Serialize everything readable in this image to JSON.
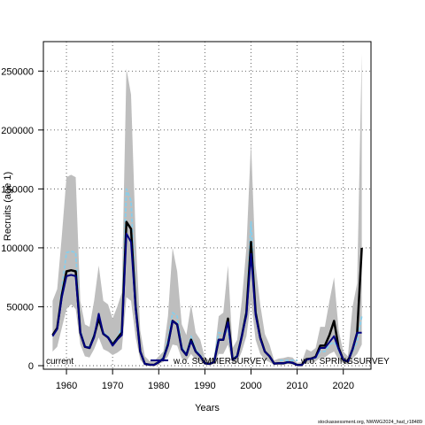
{
  "footer": {
    "source": "stockassessment.org, NWWG2024_had_r18489"
  },
  "chart_data": {
    "type": "line",
    "xlabel": "Years",
    "ylabel": "Recruits (age 1)",
    "xlim": [
      1955,
      2026
    ],
    "ylim": [
      -3000,
      275000
    ],
    "xticks": [
      1960,
      1970,
      1980,
      1990,
      2000,
      2010,
      2020
    ],
    "yticks": [
      0,
      50000,
      100000,
      150000,
      200000,
      250000
    ],
    "grid": true,
    "legend_position": "bottom",
    "band_color": "#bebebe",
    "x": [
      1957,
      1958,
      1959,
      1960,
      1961,
      1962,
      1963,
      1964,
      1965,
      1966,
      1967,
      1968,
      1969,
      1970,
      1971,
      1972,
      1973,
      1974,
      1975,
      1976,
      1977,
      1978,
      1979,
      1980,
      1981,
      1982,
      1983,
      1984,
      1985,
      1986,
      1987,
      1988,
      1989,
      1990,
      1991,
      1992,
      1993,
      1994,
      1995,
      1996,
      1997,
      1998,
      1999,
      2000,
      2001,
      2002,
      2003,
      2004,
      2005,
      2006,
      2007,
      2008,
      2009,
      2010,
      2011,
      2012,
      2013,
      2014,
      2015,
      2016,
      2017,
      2018,
      2019,
      2020,
      2021,
      2022,
      2023,
      2024
    ],
    "band": {
      "lower": [
        12000,
        16000,
        32000,
        48000,
        52000,
        48000,
        18000,
        8000,
        7000,
        14000,
        24000,
        14000,
        12000,
        9000,
        11000,
        14000,
        58000,
        55000,
        24000,
        5000,
        500,
        300,
        300,
        1500,
        3000,
        8000,
        18000,
        17000,
        6000,
        4000,
        10000,
        5000,
        3500,
        800,
        600,
        1500,
        10000,
        10000,
        18000,
        1500,
        3000,
        12000,
        25000,
        55000,
        22000,
        10000,
        5000,
        3000,
        700,
        700,
        700,
        1500,
        1000,
        200,
        200,
        2500,
        2500,
        3500,
        7000,
        7000,
        10000,
        12000,
        5000,
        2000,
        1000,
        6000,
        10000,
        18000
      ],
      "upper": [
        55000,
        65000,
        110000,
        160000,
        162000,
        160000,
        55000,
        35000,
        33000,
        55000,
        85000,
        55000,
        52000,
        40000,
        50000,
        62000,
        252000,
        230000,
        110000,
        30000,
        8000,
        4000,
        4000,
        8000,
        12000,
        42000,
        100000,
        80000,
        35000,
        26000,
        52000,
        28000,
        22000,
        6500,
        5000,
        7000,
        42000,
        45000,
        85000,
        15000,
        22000,
        55000,
        100000,
        190000,
        85000,
        52000,
        27000,
        18000,
        4500,
        6000,
        6500,
        7500,
        7000,
        2500,
        3000,
        14000,
        12000,
        15000,
        33000,
        33000,
        55000,
        75000,
        30000,
        12000,
        8000,
        50000,
        70000,
        265000
      ]
    },
    "series": [
      {
        "name": "current",
        "color": "#000000",
        "style": "solid",
        "width": 2.5,
        "values": [
          26000,
          32000,
          60000,
          80000,
          81000,
          80000,
          28000,
          16000,
          15000,
          25000,
          40000,
          27000,
          24000,
          18000,
          23000,
          28000,
          122000,
          116000,
          50000,
          12000,
          1500,
          800,
          700,
          3000,
          6000,
          18000,
          38000,
          35000,
          14000,
          9000,
          22000,
          12000,
          8000,
          2000,
          1500,
          3000,
          22000,
          22000,
          40000,
          5000,
          8000,
          25000,
          45000,
          105000,
          45000,
          24000,
          12000,
          8000,
          1800,
          2000,
          2000,
          3000,
          2500,
          500,
          600,
          5500,
          6000,
          7500,
          17000,
          17000,
          26000,
          38000,
          15000,
          5000,
          3500,
          14000,
          28000,
          100000
        ]
      },
      {
        "name": "w.o. SUMMERSURVEY",
        "color": "#000080",
        "style": "solid",
        "width": 2.0,
        "values": [
          25000,
          31000,
          58000,
          76000,
          77000,
          76000,
          28000,
          16000,
          15000,
          24000,
          44000,
          27000,
          24000,
          17000,
          22000,
          26000,
          112000,
          105000,
          48000,
          12000,
          1500,
          800,
          700,
          3000,
          6000,
          17000,
          38000,
          35000,
          14000,
          9000,
          21000,
          12000,
          8000,
          2000,
          1500,
          3000,
          22000,
          22000,
          37000,
          5000,
          8000,
          25000,
          43000,
          95000,
          43000,
          23000,
          12000,
          8000,
          1800,
          2000,
          2000,
          3000,
          2500,
          500,
          600,
          5000,
          6000,
          7000,
          15000,
          15000,
          20000,
          25000,
          14000,
          5000,
          3500,
          14000,
          28000,
          28000
        ]
      },
      {
        "name": "w.o. SPRINGSURVEY",
        "color": "#87ceeb",
        "style": "dashed",
        "width": 1.8,
        "values": [
          25000,
          32000,
          65000,
          96000,
          97000,
          96000,
          30000,
          17000,
          16000,
          27000,
          38000,
          28000,
          25000,
          19000,
          24000,
          32000,
          150000,
          140000,
          55000,
          13000,
          1800,
          900,
          800,
          3500,
          7000,
          22000,
          45000,
          42000,
          16000,
          10000,
          25000,
          14000,
          9000,
          2200,
          1600,
          3500,
          28000,
          27000,
          30000,
          5500,
          9000,
          27000,
          48000,
          122000,
          48000,
          24000,
          12000,
          8000,
          1800,
          2000,
          2000,
          3000,
          2500,
          500,
          600,
          5000,
          5500,
          6500,
          12000,
          12000,
          18000,
          20000,
          13000,
          4500,
          3500,
          12000,
          20000,
          42000
        ]
      }
    ]
  }
}
